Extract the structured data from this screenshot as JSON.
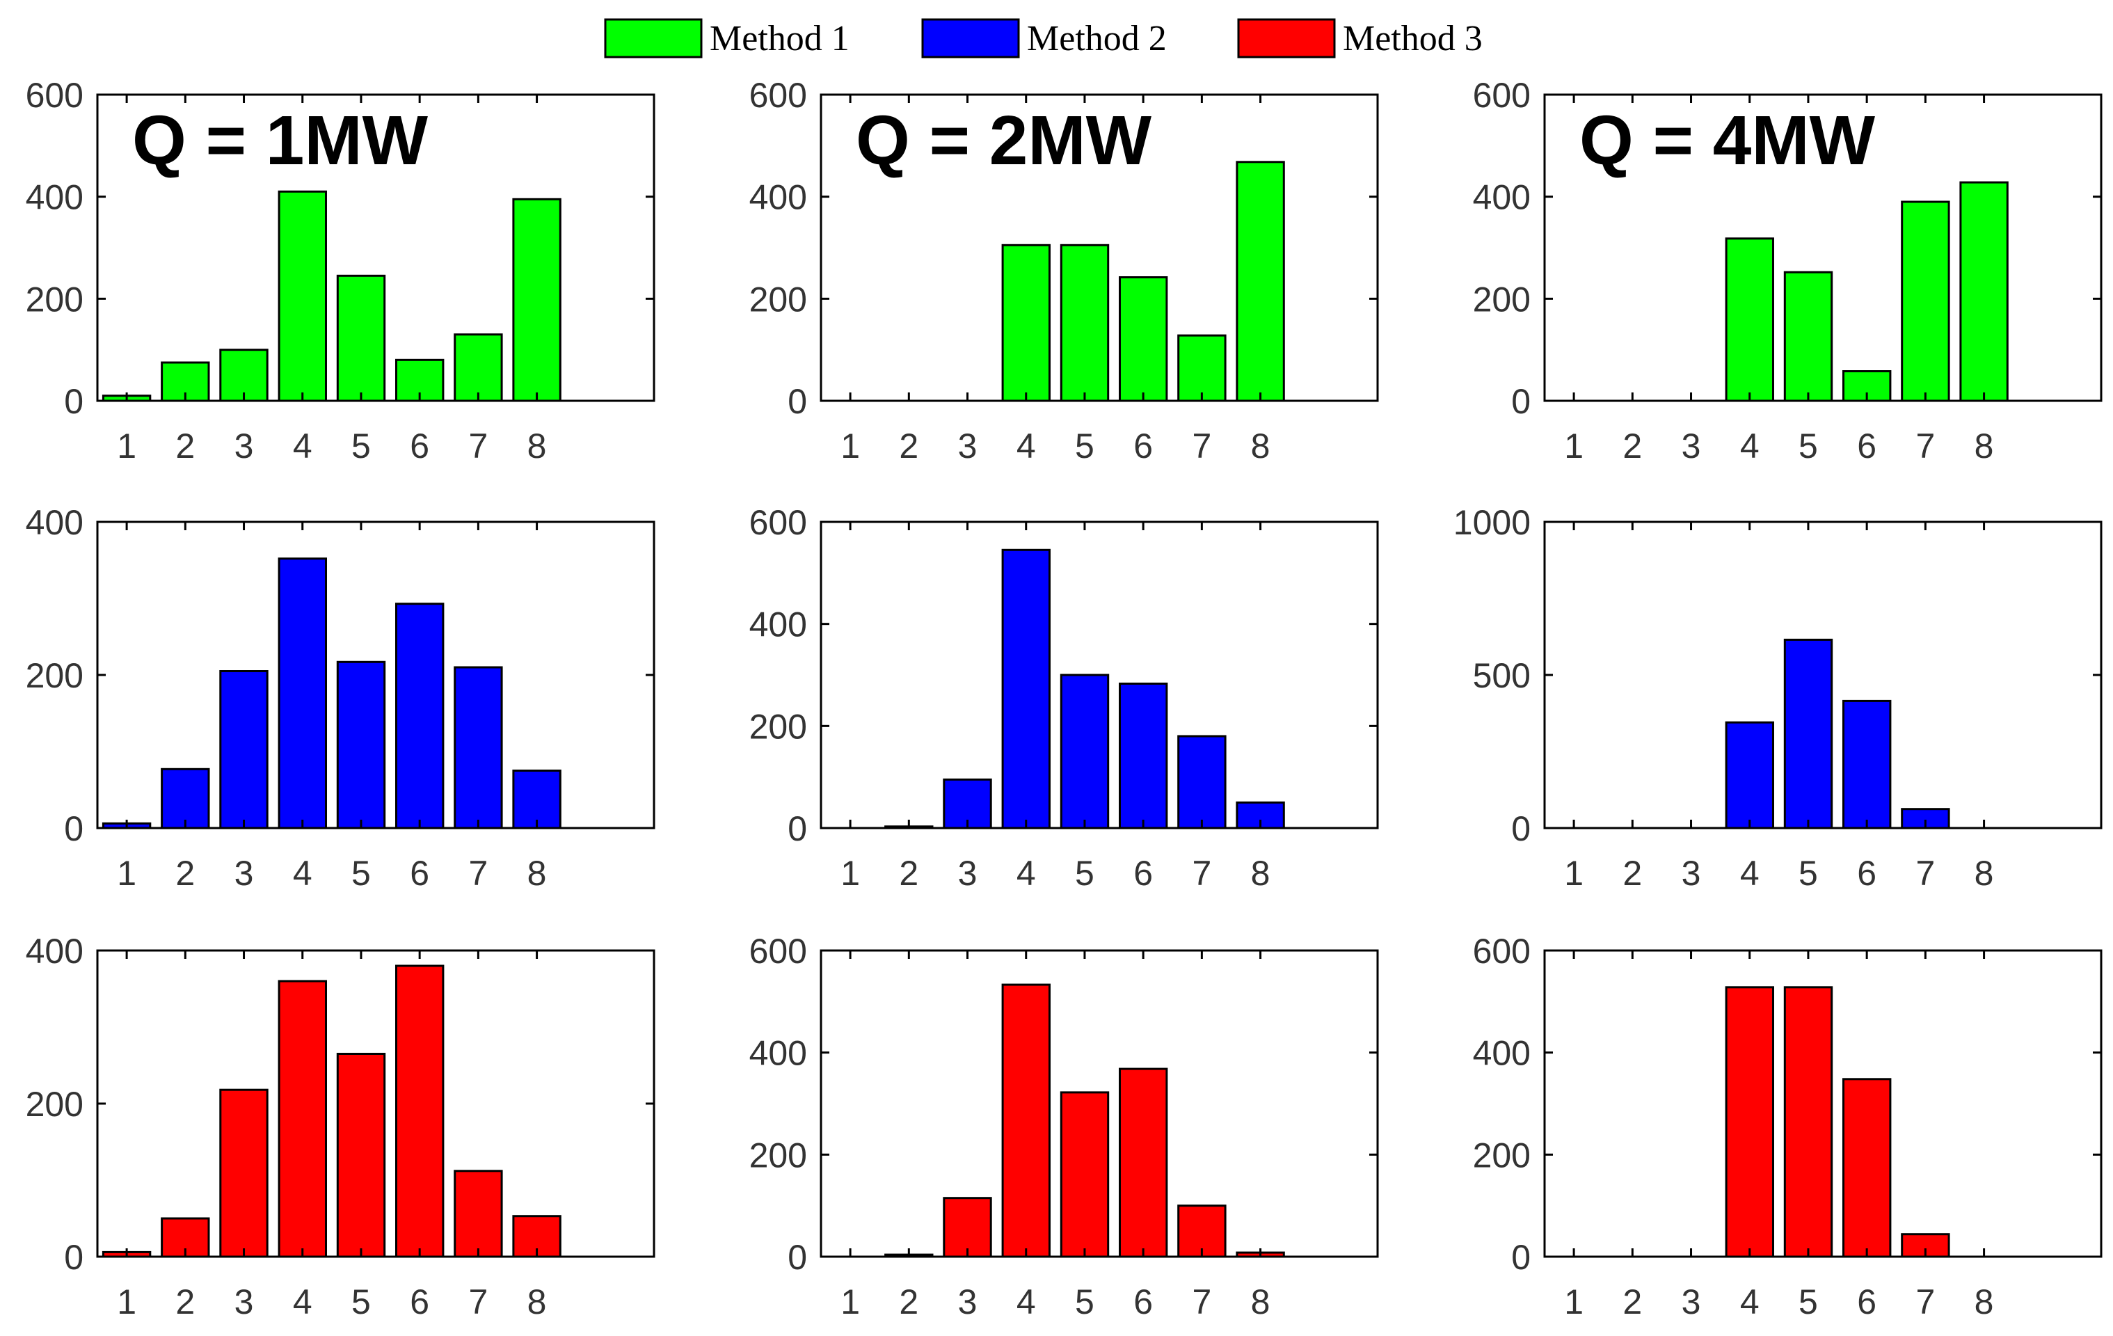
{
  "colors": {
    "method1": "#00ff00",
    "method2": "#0000ff",
    "method3": "#ff0000",
    "axis": "#000000",
    "tick_text": "#333333"
  },
  "legend": [
    {
      "label": "Method 1",
      "color_key": "method1"
    },
    {
      "label": "Method 2",
      "color_key": "method2"
    },
    {
      "label": "Method 3",
      "color_key": "method3"
    }
  ],
  "chart_data": [
    {
      "type": "bar",
      "title": "Q = 1MW",
      "series": "Method 1",
      "color_key": "method1",
      "categories": [
        "1",
        "2",
        "3",
        "4",
        "5",
        "6",
        "7",
        "8"
      ],
      "values": [
        10,
        75,
        100,
        410,
        245,
        80,
        130,
        395
      ],
      "xlim": [
        0.5,
        10
      ],
      "ylim": [
        0,
        600
      ],
      "yticks": [
        "0",
        "200",
        "400",
        "600"
      ],
      "ytick_values": [
        0,
        200,
        400,
        600
      ]
    },
    {
      "type": "bar",
      "title": "Q = 2MW",
      "series": "Method 1",
      "color_key": "method1",
      "categories": [
        "1",
        "2",
        "3",
        "4",
        "5",
        "6",
        "7",
        "8"
      ],
      "values": [
        0,
        0,
        0,
        305,
        305,
        242,
        128,
        468
      ],
      "xlim": [
        0.5,
        10
      ],
      "ylim": [
        0,
        600
      ],
      "yticks": [
        "0",
        "200",
        "400",
        "600"
      ],
      "ytick_values": [
        0,
        200,
        400,
        600
      ]
    },
    {
      "type": "bar",
      "title": "Q = 4MW",
      "series": "Method 1",
      "color_key": "method1",
      "categories": [
        "1",
        "2",
        "3",
        "4",
        "5",
        "6",
        "7",
        "8"
      ],
      "values": [
        0,
        0,
        0,
        318,
        252,
        58,
        390,
        428
      ],
      "xlim": [
        0.5,
        10
      ],
      "ylim": [
        0,
        600
      ],
      "yticks": [
        "0",
        "200",
        "400",
        "600"
      ],
      "ytick_values": [
        0,
        200,
        400,
        600
      ]
    },
    {
      "type": "bar",
      "title": "",
      "series": "Method 2",
      "color_key": "method2",
      "categories": [
        "1",
        "2",
        "3",
        "4",
        "5",
        "6",
        "7",
        "8"
      ],
      "values": [
        6,
        77,
        205,
        352,
        217,
        293,
        210,
        75
      ],
      "xlim": [
        0.5,
        10
      ],
      "ylim": [
        0,
        400
      ],
      "yticks": [
        "0",
        "200",
        "400"
      ],
      "ytick_values": [
        0,
        200,
        400
      ]
    },
    {
      "type": "bar",
      "title": "",
      "series": "Method 2",
      "color_key": "method2",
      "categories": [
        "1",
        "2",
        "3",
        "4",
        "5",
        "6",
        "7",
        "8"
      ],
      "values": [
        0,
        3,
        95,
        545,
        300,
        283,
        180,
        50
      ],
      "xlim": [
        0.5,
        10
      ],
      "ylim": [
        0,
        600
      ],
      "yticks": [
        "0",
        "200",
        "400",
        "600"
      ],
      "ytick_values": [
        0,
        200,
        400,
        600
      ]
    },
    {
      "type": "bar",
      "title": "",
      "series": "Method 2",
      "color_key": "method2",
      "categories": [
        "1",
        "2",
        "3",
        "4",
        "5",
        "6",
        "7",
        "8"
      ],
      "values": [
        0,
        0,
        0,
        345,
        615,
        415,
        62,
        0
      ],
      "xlim": [
        0.5,
        10
      ],
      "ylim": [
        0,
        1000
      ],
      "yticks": [
        "0",
        "500",
        "1000"
      ],
      "ytick_values": [
        0,
        500,
        1000
      ]
    },
    {
      "type": "bar",
      "title": "",
      "series": "Method 3",
      "color_key": "method3",
      "categories": [
        "1",
        "2",
        "3",
        "4",
        "5",
        "6",
        "7",
        "8"
      ],
      "values": [
        6,
        50,
        218,
        360,
        265,
        380,
        112,
        53
      ],
      "xlim": [
        0.5,
        10
      ],
      "ylim": [
        0,
        400
      ],
      "yticks": [
        "0",
        "200",
        "400"
      ],
      "ytick_values": [
        0,
        200,
        400
      ]
    },
    {
      "type": "bar",
      "title": "",
      "series": "Method 3",
      "color_key": "method3",
      "categories": [
        "1",
        "2",
        "3",
        "4",
        "5",
        "6",
        "7",
        "8"
      ],
      "values": [
        0,
        4,
        115,
        533,
        322,
        368,
        100,
        8
      ],
      "xlim": [
        0.5,
        10
      ],
      "ylim": [
        0,
        600
      ],
      "yticks": [
        "0",
        "200",
        "400",
        "600"
      ],
      "ytick_values": [
        0,
        200,
        400,
        600
      ]
    },
    {
      "type": "bar",
      "title": "",
      "series": "Method 3",
      "color_key": "method3",
      "categories": [
        "1",
        "2",
        "3",
        "4",
        "5",
        "6",
        "7",
        "8"
      ],
      "values": [
        0,
        0,
        0,
        528,
        528,
        348,
        44,
        0
      ],
      "xlim": [
        0.5,
        10
      ],
      "ylim": [
        0,
        600
      ],
      "yticks": [
        "0",
        "200",
        "400",
        "600"
      ],
      "ytick_values": [
        0,
        200,
        400,
        600
      ]
    }
  ]
}
